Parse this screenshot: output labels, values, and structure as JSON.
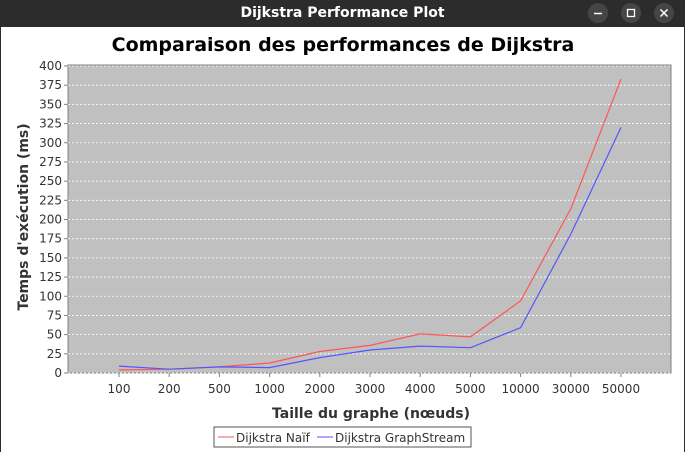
{
  "window": {
    "title": "Dijkstra Performance Plot",
    "controls": [
      "minimize",
      "maximize",
      "close"
    ]
  },
  "chart_data": {
    "type": "line",
    "title": "Comparaison des performances de Dijkstra",
    "xlabel": "Taille du graphe (nœuds)",
    "ylabel": "Temps d'exécution (ms)",
    "categories": [
      "100",
      "200",
      "500",
      "1000",
      "2000",
      "3000",
      "4000",
      "5000",
      "10000",
      "30000",
      "50000"
    ],
    "ylim": [
      0,
      400
    ],
    "yticks": [
      0,
      25,
      50,
      75,
      100,
      125,
      150,
      175,
      200,
      225,
      250,
      275,
      300,
      325,
      350,
      375,
      400
    ],
    "grid": true,
    "legend_position": "bottom",
    "series": [
      {
        "name": "Dijkstra Naïf",
        "color": "#ff5555",
        "values": [
          4,
          5,
          8,
          13,
          28,
          36,
          51,
          47,
          94,
          214,
          383
        ]
      },
      {
        "name": "Dijkstra GraphStream",
        "color": "#5555ff",
        "values": [
          9,
          5,
          8,
          7,
          20,
          30,
          35,
          33,
          59,
          181,
          320
        ]
      }
    ]
  }
}
